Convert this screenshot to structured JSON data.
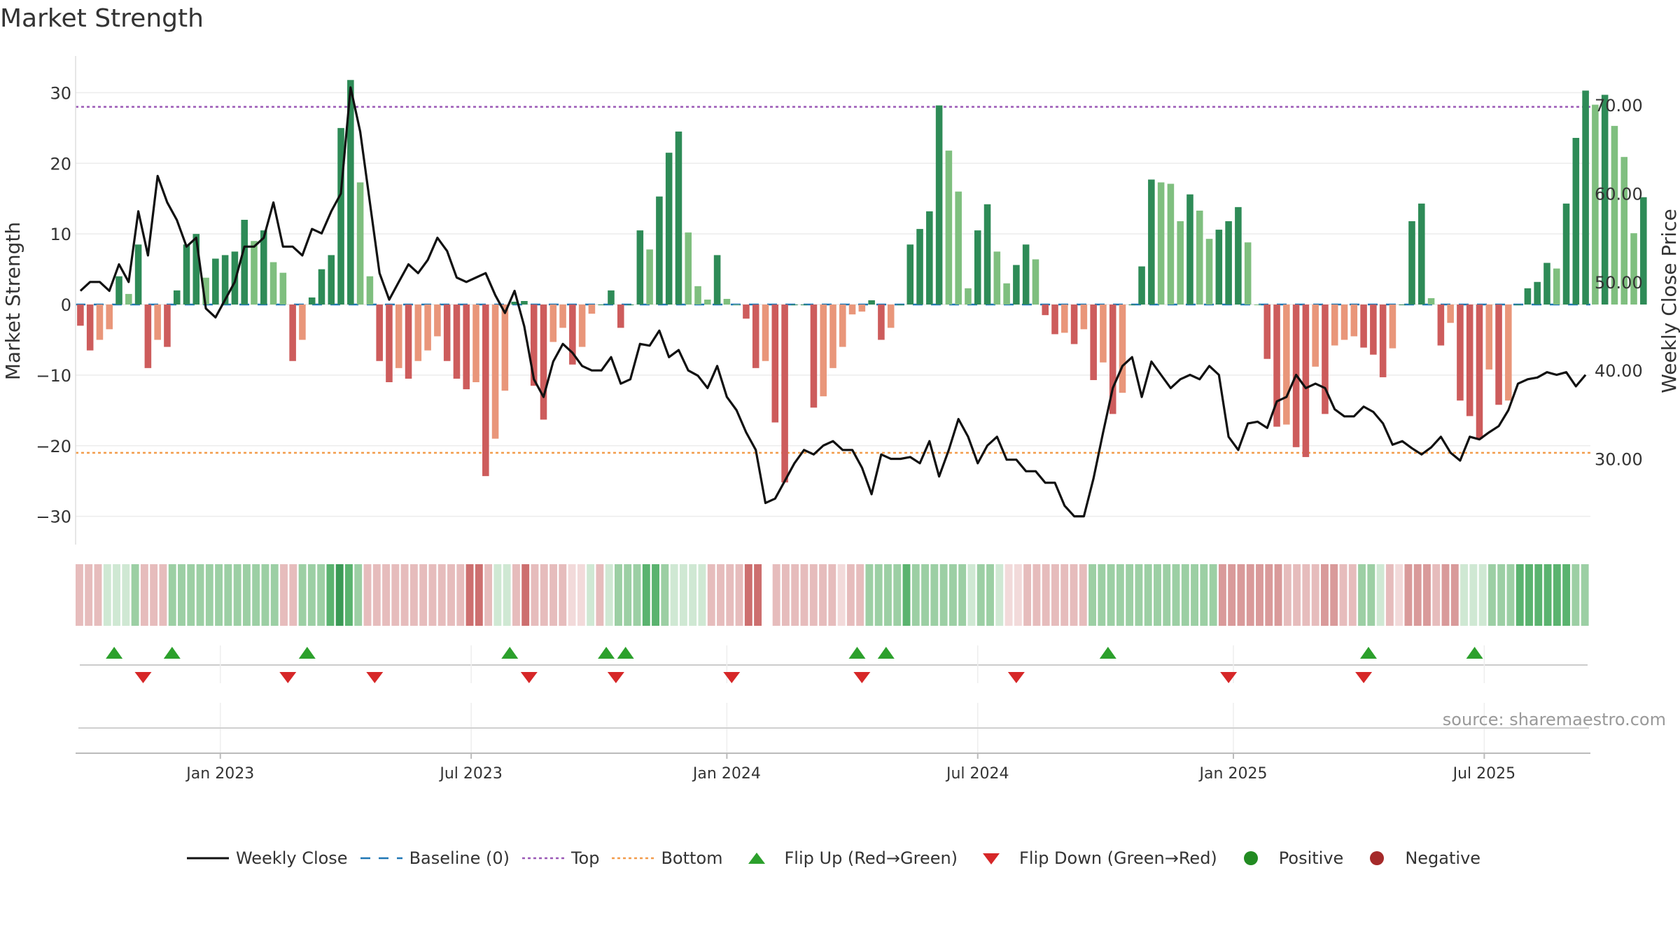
{
  "title": "Market Strength",
  "source": "source: sharemaestro.com",
  "colors": {
    "strong_green": "#2e8b57",
    "light_green": "#7fbf7f",
    "strong_red": "#cd5c5c",
    "light_red": "#e9967a",
    "line": "#111111",
    "top": "#9b59b6",
    "bottom": "#f39c4b",
    "baseline": "#1f77b4",
    "flip_up": "#2ca02c",
    "flip_down": "#d62728",
    "positive": "#228b22",
    "negative": "#a52a2a"
  },
  "legend": [
    {
      "key": "weekly_close",
      "label": "Weekly Close"
    },
    {
      "key": "baseline",
      "label": "Baseline (0)"
    },
    {
      "key": "top",
      "label": "Top"
    },
    {
      "key": "bottom",
      "label": "Bottom"
    },
    {
      "key": "flip_up",
      "label": "Flip Up (Red→Green)"
    },
    {
      "key": "flip_down",
      "label": "Flip Down (Green→Red)"
    },
    {
      "key": "positive",
      "label": "Positive"
    },
    {
      "key": "negative",
      "label": "Negative"
    }
  ],
  "chart_data": {
    "type": "bar",
    "title": "Market Strength",
    "ylabel": "Market Strength",
    "y2label": "Weekly Close Price",
    "ylim": [
      -34,
      35
    ],
    "y2lim": [
      20.3,
      75.4
    ],
    "yticks": [
      30,
      20,
      10,
      0,
      -10,
      -20,
      -30
    ],
    "ytick_labels": [
      "30",
      "20",
      "10",
      "0",
      "−10",
      "−20",
      "−30"
    ],
    "y2ticks": [
      70,
      60,
      50,
      40,
      30
    ],
    "y2tick_labels": [
      "70.00",
      "60.00",
      "50.00",
      "40.00",
      "30.00"
    ],
    "top_level": 28,
    "bottom_level": -21,
    "baseline": 0,
    "x_range_weeks": [
      0,
      157
    ],
    "xtick_weeks": [
      15,
      41,
      67.5,
      93.5,
      120,
      146
    ],
    "xtick_labels": [
      "Jan 2023",
      "Jul 2023",
      "Jan 2024",
      "Jul 2024",
      "Jan 2025",
      "Jul 2025"
    ],
    "series": [
      {
        "name": "Market Strength",
        "type": "bar",
        "values": [
          -3,
          -6.5,
          -5,
          -3.5,
          4,
          1.5,
          8.5,
          -9,
          -5,
          -6,
          2,
          8.5,
          10,
          3.8,
          6.5,
          7,
          7.5,
          12,
          9,
          10.5,
          6,
          4.5,
          -8,
          -5,
          1,
          5,
          7,
          25,
          31.8,
          17.3,
          4,
          -8,
          -11,
          -9,
          -10.5,
          -8,
          -6.5,
          -4.5,
          -8,
          -10.5,
          -12,
          -11,
          -24.3,
          -19,
          -12.2,
          0.4,
          0.5,
          -11.5,
          -16.3,
          -5.3,
          -3.3,
          -8.5,
          -6,
          -1.3,
          0,
          2,
          -3.3,
          0,
          10.5,
          7.8,
          15.3,
          21.5,
          24.5,
          10.2,
          2.6,
          0.7,
          7,
          0.8,
          0,
          -2,
          -9,
          -8,
          -16.7,
          -25.2,
          0,
          0,
          -14.6,
          -13,
          -9,
          -6,
          -1.4,
          -1,
          0.6,
          -5,
          -3.3,
          0,
          8.5,
          10.7,
          13.2,
          28.2,
          21.8,
          16,
          2.3,
          10.5,
          14.2,
          7.5,
          3,
          5.6,
          8.5,
          6.4,
          -1.5,
          -4.2,
          -4,
          -5.6,
          -3.5,
          -10.7,
          -8.2,
          -15.5,
          -12.5,
          0,
          5.4,
          17.7,
          17.3,
          17.1,
          11.8,
          15.6,
          13.3,
          9.3,
          10.6,
          11.8,
          13.8,
          8.8,
          0,
          -7.7,
          -17.3,
          -17,
          -20.2,
          -21.6,
          -8.8,
          -15.5,
          -5.8,
          -5,
          -4.5,
          -6.1,
          -7.1,
          -10.3,
          -6.2,
          0,
          11.8,
          14.3,
          0.9,
          -5.8,
          -2.6,
          -13.6,
          -15.8,
          -19,
          -9.2,
          -14.2,
          -13.6,
          0,
          2.3,
          3.2,
          5.9,
          5.1,
          14.3,
          23.6,
          30.3,
          28.3,
          29.7,
          25.3,
          20.9,
          10.1,
          15.2
        ]
      },
      {
        "name": "Weekly Close",
        "type": "line",
        "values": [
          49,
          50,
          50,
          49,
          52,
          50,
          58,
          53,
          62,
          59,
          57,
          54,
          55,
          47,
          46,
          48,
          50,
          54,
          54,
          55,
          59,
          54,
          54,
          53,
          56,
          55.5,
          58,
          60,
          72,
          67,
          59,
          51,
          48,
          50,
          52,
          51,
          52.5,
          55,
          53.5,
          50.5,
          50,
          50.5,
          51,
          48.5,
          46.5,
          49,
          45,
          39,
          37,
          41,
          43,
          42,
          40.5,
          40,
          40,
          41.5,
          38.5,
          39,
          43,
          42.8,
          44.5,
          41.5,
          42.3,
          40,
          39.4,
          38,
          40.5,
          37,
          35.5,
          33,
          31,
          25,
          25.5,
          27.5,
          29.5,
          31,
          30.5,
          31.5,
          32,
          31,
          31,
          29,
          26,
          30.5,
          30,
          30,
          30.2,
          29.5,
          32,
          28,
          31,
          34.5,
          32.5,
          29.5,
          31.5,
          32.5,
          29.9,
          29.9,
          28.6,
          28.6,
          27.3,
          27.3,
          24.7,
          23.5,
          23.5,
          27.8,
          33,
          38,
          40.5,
          41.5,
          37,
          41,
          39.5,
          38,
          39,
          39.5,
          39,
          40.5,
          39.5,
          32.5,
          31,
          34,
          34.2,
          33.5,
          36.5,
          37,
          39.5,
          38,
          38.5,
          38,
          35.6,
          34.8,
          34.8,
          35.9,
          35.3,
          34,
          31.6,
          32,
          31.2,
          30.5,
          31.3,
          32.5,
          30.7,
          29.8,
          32.5,
          32.2,
          33,
          33.7,
          35.5,
          38.5,
          39,
          39.2,
          39.8,
          39.5,
          39.8,
          38.2,
          39.5
        ]
      }
    ],
    "strip_values": [
      -1,
      -1,
      -1,
      0.5,
      0.5,
      0.5,
      1,
      -1,
      -1,
      -1,
      1,
      1,
      1,
      1,
      1,
      1,
      1,
      1,
      1,
      1,
      1,
      1,
      -1,
      -1,
      1,
      1,
      1,
      2,
      3,
      2,
      1,
      -1,
      -1,
      -1,
      -1,
      -1,
      -1,
      -1,
      -1,
      -1,
      -1,
      -1,
      -2,
      -2,
      -1,
      0.5,
      0.5,
      -1,
      -2,
      -1,
      -1,
      -1,
      -1,
      -0.5,
      -0.5,
      0.5,
      -1,
      0.5,
      1,
      1,
      1,
      2,
      2,
      1,
      0.5,
      0.5,
      0.5,
      0.5,
      -1,
      -1,
      -1,
      -1,
      -2,
      -2,
      null,
      -1,
      -1,
      -1,
      -1,
      -1,
      -1,
      -1,
      -0.5,
      -1,
      -1,
      1,
      1,
      1,
      1,
      2,
      1,
      1,
      1,
      1,
      1,
      1,
      0.5,
      1,
      1,
      0.5,
      -0.5,
      -0.5,
      -1,
      -1,
      -1,
      -1,
      -1,
      -1,
      -1,
      1,
      1,
      1,
      1,
      1,
      1,
      1,
      1,
      1,
      1,
      1,
      1,
      1,
      1,
      -1.5,
      -1.5,
      -1.5,
      -1.5,
      -1.5,
      -1.5,
      -1.5,
      -1,
      -1,
      -1,
      -1,
      -1.5,
      -1.5,
      -1,
      -1,
      1,
      1,
      0.5,
      -1,
      -0.5,
      -1.5,
      -1.5,
      -1.5,
      -1,
      -1.5,
      -1.5,
      0.5,
      0.5,
      0.5,
      1,
      1,
      1,
      2,
      2,
      2,
      2,
      2,
      2,
      1,
      1
    ],
    "flip_up_weeks": [
      4,
      10,
      24,
      45,
      55,
      57,
      81,
      84,
      107,
      134,
      145
    ],
    "flip_down_weeks": [
      7,
      22,
      31,
      47,
      56,
      68,
      81.5,
      97.5,
      119.5,
      133.5
    ]
  }
}
